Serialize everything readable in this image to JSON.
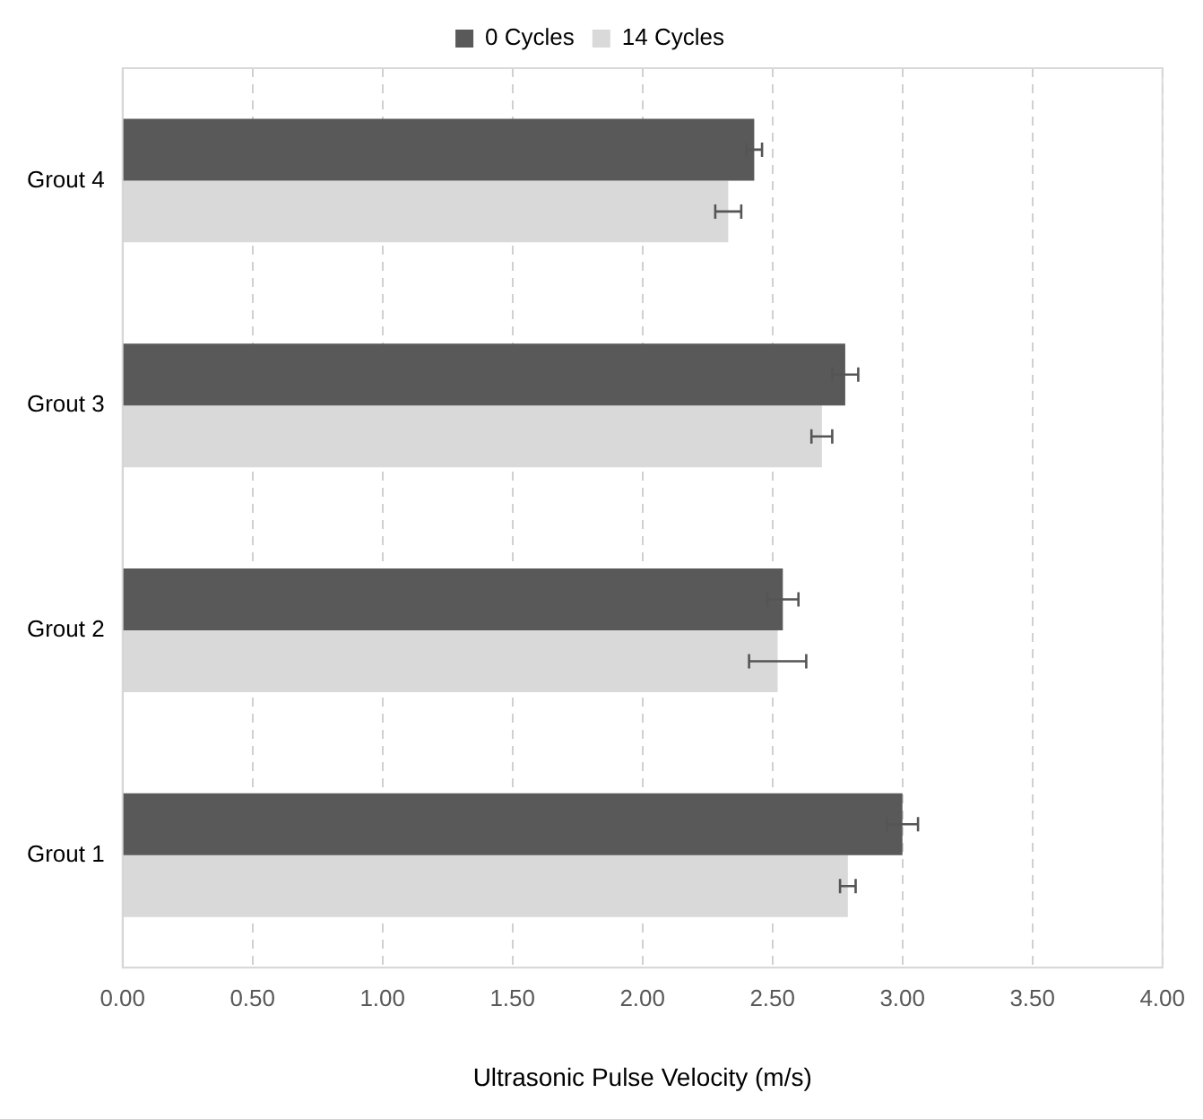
{
  "chart_data": {
    "type": "bar",
    "orientation": "horizontal",
    "xlabel": "Ultrasonic Pulse Velocity (m/s)",
    "categories": [
      "Grout 4",
      "Grout 3",
      "Grout 2",
      "Grout 1"
    ],
    "series": [
      {
        "name": "0 Cycles",
        "color": "#595959",
        "values": [
          2.43,
          2.78,
          2.54,
          3.0
        ],
        "errors": [
          0.03,
          0.05,
          0.06,
          0.06
        ]
      },
      {
        "name": "14 Cycles",
        "color": "#d9d9d9",
        "values": [
          2.33,
          2.69,
          2.52,
          2.79
        ],
        "errors": [
          0.05,
          0.04,
          0.11,
          0.03
        ]
      }
    ],
    "xlim": [
      0,
      4
    ],
    "xticks": [
      {
        "value": 0,
        "label": "0.00"
      },
      {
        "value": 0.5,
        "label": "0.50"
      },
      {
        "value": 1,
        "label": "1.00"
      },
      {
        "value": 1.5,
        "label": "1.50"
      },
      {
        "value": 2,
        "label": "2.00"
      },
      {
        "value": 2.5,
        "label": "2.50"
      },
      {
        "value": 3,
        "label": "3.00"
      },
      {
        "value": 3.5,
        "label": "3.50"
      },
      {
        "value": 4,
        "label": "4.00"
      }
    ],
    "grid": "x",
    "legend": "top"
  }
}
